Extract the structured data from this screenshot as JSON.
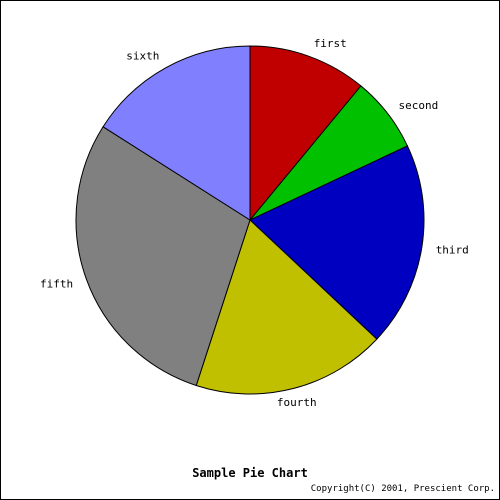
{
  "chart_data": {
    "type": "pie",
    "title": "Sample Pie Chart",
    "copyright": "Copyright(C) 2001, Prescient Corp.",
    "start_angle_deg": 90,
    "direction": "clockwise",
    "slices": [
      {
        "label": "first",
        "value": 11,
        "color": "#c00000"
      },
      {
        "label": "second",
        "value": 7,
        "color": "#00c000"
      },
      {
        "label": "third",
        "value": 19,
        "color": "#0000c0"
      },
      {
        "label": "fourth",
        "value": 18,
        "color": "#c0c000"
      },
      {
        "label": "fifth",
        "value": 29,
        "color": "#808080"
      },
      {
        "label": "sixth",
        "value": 16,
        "color": "#8080ff"
      }
    ]
  }
}
